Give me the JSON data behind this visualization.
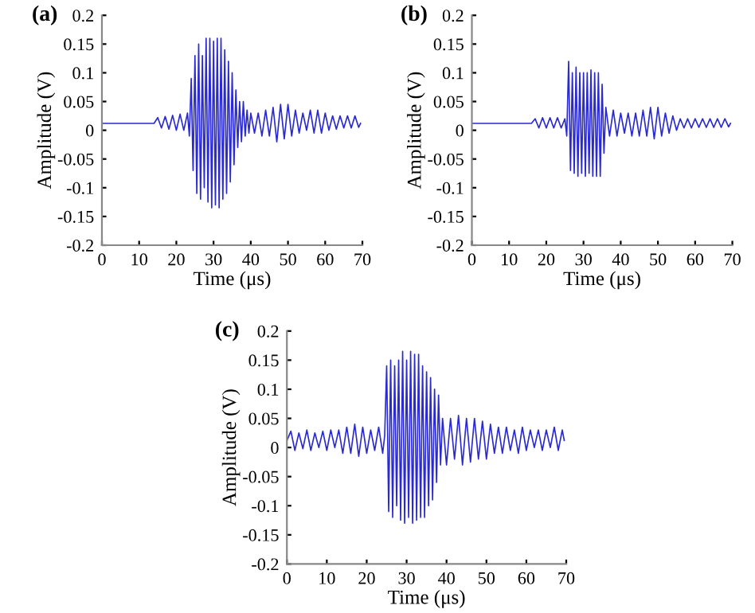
{
  "chart_data": [
    {
      "type": "line",
      "title": "(a)",
      "xlabel": "Time (μs)",
      "ylabel": "Amplitude (V)",
      "xlim": [
        0,
        70
      ],
      "ylim": [
        -0.2,
        0.2
      ],
      "xticks": [
        0,
        10,
        20,
        30,
        40,
        50,
        60,
        70
      ],
      "yticks": [
        -0.2,
        -0.15,
        -0.1,
        -0.05,
        0,
        0.05,
        0.1,
        0.15,
        0.2
      ],
      "grid": false,
      "legend": false,
      "series": [
        {
          "color": "#2a2ad0",
          "x": [
            0,
            14,
            15,
            16,
            17,
            18,
            19,
            20,
            21,
            22,
            23,
            23.5,
            24,
            24.5,
            25,
            25.5,
            26,
            26.5,
            27,
            27.5,
            28,
            28.5,
            29,
            29.5,
            30,
            30.5,
            31,
            31.5,
            32,
            32.5,
            33,
            33.5,
            34,
            34.5,
            35,
            35.5,
            36,
            36.5,
            37,
            37.5,
            38,
            38.5,
            39,
            39.5,
            40,
            41,
            42,
            43,
            44,
            45,
            46,
            47,
            48,
            49,
            50,
            51,
            52,
            53,
            54,
            55,
            56,
            57,
            58,
            59,
            60,
            61,
            62,
            63,
            64,
            65,
            66,
            67,
            68,
            69,
            69.5
          ],
          "values": [
            0.012,
            0.012,
            0.022,
            0.004,
            0.024,
            0.002,
            0.026,
            0.0,
            0.028,
            0.0,
            0.03,
            -0.01,
            0.09,
            -0.07,
            0.13,
            -0.11,
            0.15,
            -0.12,
            0.13,
            -0.1,
            0.16,
            -0.125,
            0.16,
            -0.135,
            0.155,
            -0.13,
            0.16,
            -0.135,
            0.16,
            -0.12,
            0.14,
            -0.11,
            0.12,
            -0.09,
            0.1,
            -0.06,
            0.07,
            -0.03,
            0.05,
            -0.02,
            0.05,
            -0.01,
            0.035,
            -0.005,
            0.03,
            -0.005,
            0.03,
            -0.01,
            0.035,
            -0.01,
            0.04,
            -0.02,
            0.045,
            -0.015,
            0.045,
            -0.01,
            0.035,
            -0.005,
            0.03,
            0.0,
            0.035,
            -0.005,
            0.035,
            -0.005,
            0.03,
            0.0,
            0.025,
            0.002,
            0.025,
            0.004,
            0.025,
            0.004,
            0.025,
            0.005,
            0.012
          ]
        }
      ]
    },
    {
      "type": "line",
      "title": "(b)",
      "xlabel": "Time (μs)",
      "ylabel": "Amplitude (V)",
      "xlim": [
        0,
        70
      ],
      "ylim": [
        -0.2,
        0.2
      ],
      "xticks": [
        0,
        10,
        20,
        30,
        40,
        50,
        60,
        70
      ],
      "yticks": [
        -0.2,
        -0.15,
        -0.1,
        -0.05,
        0,
        0.05,
        0.1,
        0.15,
        0.2
      ],
      "grid": false,
      "legend": false,
      "series": [
        {
          "color": "#2a2ad0",
          "x": [
            0,
            16,
            17,
            18,
            19,
            20,
            21,
            22,
            23,
            24,
            25,
            25.5,
            26,
            26.5,
            27,
            27.5,
            28,
            28.5,
            29,
            29.5,
            30,
            30.5,
            31,
            31.5,
            32,
            32.5,
            33,
            33.5,
            34,
            34.5,
            35,
            35.5,
            36,
            37,
            38,
            39,
            40,
            41,
            42,
            43,
            44,
            45,
            46,
            47,
            48,
            49,
            50,
            51,
            52,
            53,
            54,
            55,
            56,
            57,
            58,
            59,
            60,
            61,
            62,
            63,
            64,
            65,
            66,
            67,
            68,
            69,
            69.5
          ],
          "values": [
            0.012,
            0.012,
            0.02,
            0.004,
            0.022,
            0.004,
            0.022,
            0.004,
            0.022,
            0.004,
            0.02,
            -0.01,
            0.12,
            -0.07,
            0.1,
            -0.075,
            0.11,
            -0.08,
            0.1,
            -0.075,
            0.1,
            -0.08,
            0.1,
            -0.075,
            0.105,
            -0.08,
            0.1,
            -0.08,
            0.1,
            -0.08,
            0.08,
            -0.04,
            0.04,
            -0.01,
            0.035,
            -0.01,
            0.03,
            -0.005,
            0.03,
            -0.01,
            0.03,
            -0.01,
            0.035,
            -0.01,
            0.04,
            -0.015,
            0.04,
            -0.01,
            0.03,
            -0.005,
            0.025,
            0.0,
            0.02,
            0.004,
            0.02,
            0.004,
            0.02,
            0.005,
            0.02,
            0.005,
            0.02,
            0.005,
            0.02,
            0.005,
            0.02,
            0.006,
            0.012
          ]
        }
      ]
    },
    {
      "type": "line",
      "title": "(c)",
      "xlabel": "Time (μs)",
      "ylabel": "Amplitude (V)",
      "xlim": [
        0,
        70
      ],
      "ylim": [
        -0.2,
        0.2
      ],
      "xticks": [
        0,
        10,
        20,
        30,
        40,
        50,
        60,
        70
      ],
      "yticks": [
        -0.2,
        -0.15,
        -0.1,
        -0.05,
        0,
        0.05,
        0.1,
        0.15,
        0.2
      ],
      "grid": false,
      "legend": false,
      "series": [
        {
          "color": "#2a2ad0",
          "x": [
            0,
            1,
            2,
            3,
            4,
            5,
            6,
            7,
            8,
            9,
            10,
            11,
            12,
            13,
            14,
            15,
            16,
            17,
            18,
            19,
            20,
            21,
            22,
            23,
            24,
            24.5,
            25,
            25.5,
            26,
            26.5,
            27,
            27.5,
            28,
            28.5,
            29,
            29.5,
            30,
            30.5,
            31,
            31.5,
            32,
            32.5,
            33,
            33.5,
            34,
            34.5,
            35,
            35.5,
            36,
            36.5,
            37,
            37.5,
            38,
            38.5,
            39,
            40,
            41,
            42,
            43,
            44,
            45,
            46,
            47,
            48,
            49,
            50,
            51,
            52,
            53,
            54,
            55,
            56,
            57,
            58,
            59,
            60,
            61,
            62,
            63,
            64,
            65,
            66,
            67,
            68,
            69,
            69.5
          ],
          "values": [
            0.012,
            0.028,
            -0.005,
            0.025,
            -0.002,
            0.03,
            -0.005,
            0.025,
            0.0,
            0.028,
            -0.005,
            0.03,
            0.0,
            0.03,
            -0.01,
            0.035,
            -0.01,
            0.04,
            -0.015,
            0.035,
            -0.01,
            0.03,
            -0.005,
            0.035,
            -0.01,
            0.02,
            0.14,
            -0.11,
            0.15,
            -0.12,
            0.14,
            -0.1,
            0.15,
            -0.125,
            0.165,
            -0.13,
            0.15,
            -0.12,
            0.165,
            -0.13,
            0.16,
            -0.125,
            0.16,
            -0.12,
            0.14,
            -0.12,
            0.13,
            -0.1,
            0.12,
            -0.09,
            0.1,
            -0.06,
            0.09,
            -0.03,
            0.05,
            -0.03,
            0.05,
            -0.02,
            0.055,
            -0.03,
            0.05,
            -0.025,
            0.05,
            -0.02,
            0.045,
            -0.02,
            0.04,
            -0.01,
            0.035,
            -0.01,
            0.035,
            -0.005,
            0.03,
            -0.01,
            0.035,
            -0.005,
            0.03,
            0.0,
            0.03,
            -0.005,
            0.03,
            0.0,
            0.035,
            -0.005,
            0.03,
            0.012
          ]
        }
      ]
    }
  ]
}
